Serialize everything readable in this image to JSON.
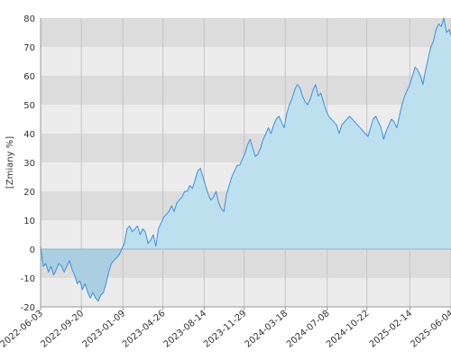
{
  "chart_data": {
    "type": "area",
    "title": "",
    "xlabel": "",
    "ylabel": "[Zmiany %]",
    "ylim": [
      -20,
      80
    ],
    "y_ticks": [
      80,
      70,
      60,
      50,
      40,
      30,
      20,
      10,
      0,
      -10,
      -20
    ],
    "x_range": [
      "2022-06-03",
      "2025-06-04"
    ],
    "x_ticks": [
      "2022-06-03",
      "2022-09-20",
      "2023-01-09",
      "2023-04-26",
      "2023-08-14",
      "2023-11-29",
      "2024-03-18",
      "2024-07-08",
      "2024-10-22",
      "2025-02-14",
      "2025-06-04"
    ],
    "grid": true,
    "legend": "none",
    "colors": {
      "line": "#3d8fe0",
      "fill_positive": "#bde0ef",
      "fill_negative": "#a9cfe0",
      "band_light": "#ececec",
      "band_dark": "#dcdcdc",
      "zero_line": "#8fb4cc"
    },
    "series": [
      {
        "x": [
          "2022-06-03",
          "2022-06-10",
          "2022-06-17",
          "2022-06-24",
          "2022-07-01",
          "2022-07-08",
          "2022-07-15",
          "2022-07-22",
          "2022-07-29",
          "2022-08-05",
          "2022-08-12",
          "2022-08-19",
          "2022-08-26",
          "2022-09-02",
          "2022-09-09",
          "2022-09-16",
          "2022-09-23",
          "2022-09-30",
          "2022-10-07",
          "2022-10-14",
          "2022-10-21",
          "2022-10-28",
          "2022-11-04",
          "2022-11-11",
          "2022-11-18",
          "2022-11-25",
          "2022-12-02",
          "2022-12-09",
          "2022-12-16",
          "2022-12-23",
          "2022-12-30",
          "2023-01-06",
          "2023-01-13",
          "2023-01-20",
          "2023-01-27",
          "2023-02-03",
          "2023-02-10",
          "2023-02-17",
          "2023-02-24",
          "2023-03-03",
          "2023-03-10",
          "2023-03-17",
          "2023-03-24",
          "2023-03-31",
          "2023-04-07",
          "2023-04-14",
          "2023-04-21",
          "2023-04-28",
          "2023-05-05",
          "2023-05-12",
          "2023-05-19",
          "2023-05-26",
          "2023-06-02",
          "2023-06-09",
          "2023-06-16",
          "2023-06-23",
          "2023-06-30",
          "2023-07-07",
          "2023-07-14",
          "2023-07-21",
          "2023-07-28",
          "2023-08-04",
          "2023-08-11",
          "2023-08-18",
          "2023-08-25",
          "2023-09-01",
          "2023-09-08",
          "2023-09-15",
          "2023-09-22",
          "2023-09-29",
          "2023-10-06",
          "2023-10-13",
          "2023-10-20",
          "2023-10-27",
          "2023-11-03",
          "2023-11-10",
          "2023-11-17",
          "2023-11-24",
          "2023-12-01",
          "2023-12-08",
          "2023-12-15",
          "2023-12-22",
          "2023-12-29",
          "2024-01-05",
          "2024-01-12",
          "2024-01-19",
          "2024-01-26",
          "2024-02-02",
          "2024-02-09",
          "2024-02-16",
          "2024-02-23",
          "2024-03-01",
          "2024-03-08",
          "2024-03-15",
          "2024-03-22",
          "2024-03-29",
          "2024-04-05",
          "2024-04-12",
          "2024-04-19",
          "2024-04-26",
          "2024-05-03",
          "2024-05-10",
          "2024-05-17",
          "2024-05-24",
          "2024-05-31",
          "2024-06-07",
          "2024-06-14",
          "2024-06-21",
          "2024-06-28",
          "2024-07-05",
          "2024-07-12",
          "2024-07-19",
          "2024-07-26",
          "2024-08-02",
          "2024-08-09",
          "2024-08-16",
          "2024-08-23",
          "2024-08-30",
          "2024-09-06",
          "2024-09-13",
          "2024-09-20",
          "2024-09-27",
          "2024-10-04",
          "2024-10-11",
          "2024-10-18",
          "2024-10-25",
          "2024-11-01",
          "2024-11-08",
          "2024-11-15",
          "2024-11-22",
          "2024-11-29",
          "2024-12-06",
          "2024-12-13",
          "2024-12-20",
          "2024-12-27",
          "2025-01-03",
          "2025-01-10",
          "2025-01-17",
          "2025-01-24",
          "2025-01-31",
          "2025-02-07",
          "2025-02-14",
          "2025-02-21",
          "2025-02-28",
          "2025-03-07",
          "2025-03-14",
          "2025-03-21",
          "2025-03-28",
          "2025-04-04",
          "2025-04-11",
          "2025-04-18",
          "2025-04-25",
          "2025-05-02",
          "2025-05-09",
          "2025-05-16",
          "2025-05-23",
          "2025-05-30",
          "2025-06-04"
        ],
        "y": [
          1,
          -6,
          -5,
          -8,
          -6,
          -9,
          -7,
          -5,
          -6,
          -8,
          -6,
          -4,
          -7,
          -9,
          -12,
          -11,
          -14,
          -12,
          -15,
          -17,
          -15,
          -17,
          -18,
          -16,
          -15,
          -12,
          -8,
          -5,
          -4,
          -3,
          -2,
          0,
          2,
          7,
          8,
          6,
          7,
          8,
          5,
          7,
          6,
          2,
          3,
          5,
          1,
          7,
          9,
          11,
          12,
          13,
          15,
          13,
          16,
          17,
          18,
          20,
          20,
          22,
          21,
          24,
          27,
          28,
          25,
          22,
          19,
          17,
          18,
          20,
          16,
          14,
          13,
          19,
          22,
          25,
          27,
          29,
          29,
          31,
          33,
          36,
          38,
          35,
          32,
          33,
          35,
          38,
          40,
          42,
          40,
          43,
          45,
          46,
          44,
          42,
          47,
          50,
          52,
          55,
          57,
          56,
          53,
          51,
          50,
          52,
          55,
          57,
          53,
          54,
          51,
          48,
          46,
          45,
          44,
          43,
          40,
          43,
          44,
          45,
          46,
          45,
          44,
          43,
          42,
          41,
          40,
          39,
          42,
          45,
          46,
          44,
          42,
          38,
          41,
          43,
          45,
          44,
          42,
          46,
          50,
          53,
          55,
          57,
          60,
          63,
          62,
          60,
          57,
          62,
          66,
          70,
          72,
          76,
          78,
          77,
          80,
          75,
          76,
          74
        ]
      }
    ]
  }
}
